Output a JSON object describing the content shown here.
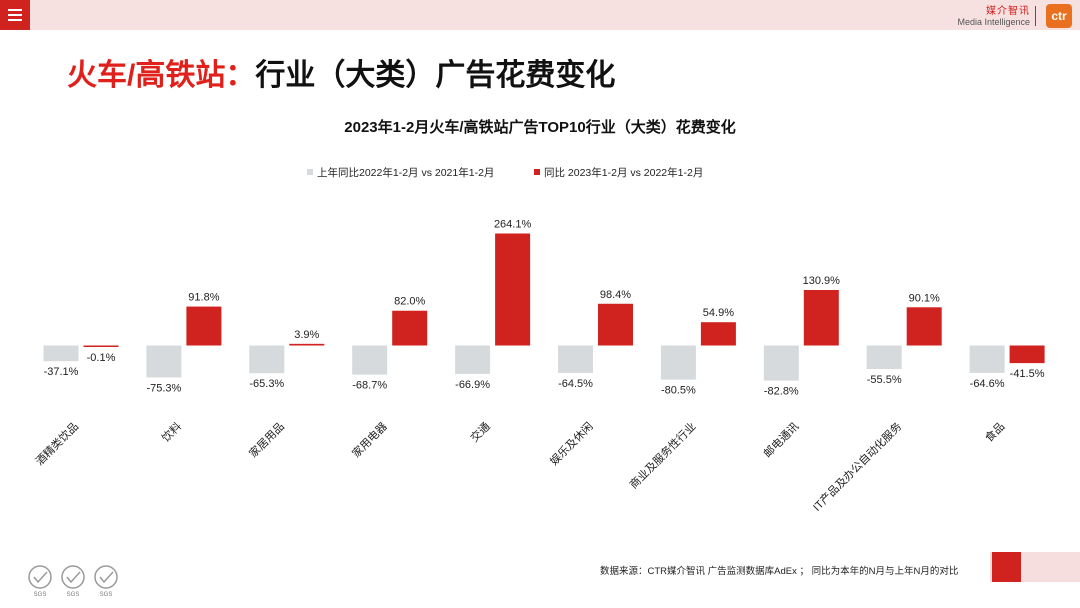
{
  "header": {
    "brand_cn": "媒介智讯",
    "brand_en": "Media Intelligence",
    "logo_text": "ctr"
  },
  "page_title": {
    "red_part": "火车/高铁站：",
    "black_part": "行业（大类）广告花费变化"
  },
  "footer": {
    "source": "数据来源：CTR媒介智讯 广告监测数据库AdEx ； 同比为本年的N月与上年N月的对比",
    "cert_label": "SGS"
  },
  "colors": {
    "accent_red": "#d0221e",
    "gray_bar": "#d6dadc",
    "title_red": "#e0201b"
  },
  "chart_data": {
    "type": "bar",
    "title": "2023年1-2月火车/高铁站广告TOP10行业（大类）花费变化",
    "legend_position": "top-left",
    "categories": [
      "酒精类饮品",
      "饮料",
      "家居用品",
      "家用电器",
      "交通",
      "娱乐及休闲",
      "商业及服务性行业",
      "邮电通讯",
      "IT产品及办公自动化服务",
      "食品"
    ],
    "series": [
      {
        "name": "上年同比2022年1-2月  vs  2021年1-2月",
        "color": "#d6dadc",
        "values": [
          -37.1,
          -75.3,
          -65.3,
          -68.7,
          -66.9,
          -64.5,
          -80.5,
          -82.8,
          -55.5,
          -64.6
        ],
        "labels": [
          "-37.1%",
          "-75.3%",
          "-65.3%",
          "-68.7%",
          "-66.9%",
          "-64.5%",
          "-80.5%",
          "-82.8%",
          "-55.5%",
          "-64.6%"
        ]
      },
      {
        "name": "同比 2023年1-2月  vs  2022年1-2月",
        "color": "#d0221e",
        "values": [
          -0.1,
          91.8,
          3.9,
          82.0,
          264.1,
          98.4,
          54.9,
          130.9,
          90.1,
          -41.5
        ],
        "labels": [
          "-0.1%",
          "91.8%",
          "3.9%",
          "82.0%",
          "264.1%",
          "98.4%",
          "54.9%",
          "130.9%",
          "90.1%",
          "-41.5%"
        ]
      }
    ],
    "xlabel": "",
    "ylabel": "",
    "ylim": [
      -100,
      300
    ],
    "grid": false
  }
}
